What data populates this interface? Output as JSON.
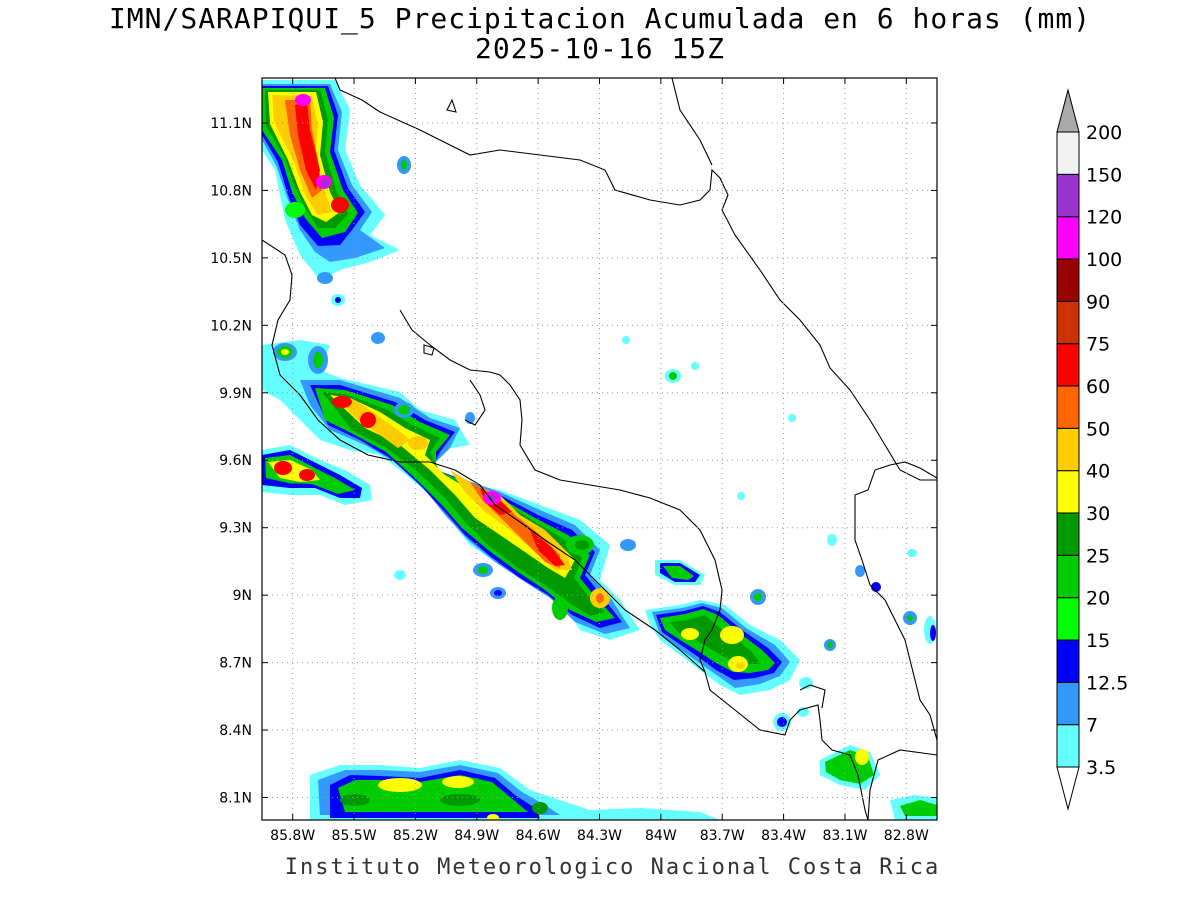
{
  "title": {
    "line1": "IMN/SARAPIQUI_5 Precipitacion Acumulada en 6 horas (mm)",
    "line2": "2025-10-16 15Z"
  },
  "footer": "Instituto Meteorologico Nacional Costa Rica",
  "map": {
    "lon_range": [
      -85.95,
      -82.65
    ],
    "lat_range": [
      8.0,
      11.3
    ],
    "lon_ticks": [
      {
        "value": -85.8,
        "label": "85.8W"
      },
      {
        "value": -85.5,
        "label": "85.5W"
      },
      {
        "value": -85.2,
        "label": "85.2W"
      },
      {
        "value": -84.9,
        "label": "84.9W"
      },
      {
        "value": -84.6,
        "label": "84.6W"
      },
      {
        "value": -84.3,
        "label": "84.3W"
      },
      {
        "value": -84.0,
        "label": "84W"
      },
      {
        "value": -83.7,
        "label": "83.7W"
      },
      {
        "value": -83.4,
        "label": "83.4W"
      },
      {
        "value": -83.1,
        "label": "83.1W"
      },
      {
        "value": -82.8,
        "label": "82.8W"
      }
    ],
    "lat_ticks": [
      {
        "value": 11.1,
        "label": "11.1N"
      },
      {
        "value": 10.8,
        "label": "10.8N"
      },
      {
        "value": 10.5,
        "label": "10.5N"
      },
      {
        "value": 10.2,
        "label": "10.2N"
      },
      {
        "value": 9.9,
        "label": "9.9N"
      },
      {
        "value": 9.6,
        "label": "9.6N"
      },
      {
        "value": 9.3,
        "label": "9.3N"
      },
      {
        "value": 9.0,
        "label": "9N"
      },
      {
        "value": 8.7,
        "label": "8.7N"
      },
      {
        "value": 8.4,
        "label": "8.4N"
      },
      {
        "value": 8.1,
        "label": "8.1N"
      }
    ]
  },
  "legend": {
    "levels": [
      {
        "label": "3.5",
        "color": "#66ffff"
      },
      {
        "label": "7",
        "color": "#3399ff"
      },
      {
        "label": "12.5",
        "color": "#0000ff"
      },
      {
        "label": "15",
        "color": "#00ff00"
      },
      {
        "label": "20",
        "color": "#00cc00"
      },
      {
        "label": "25",
        "color": "#009900"
      },
      {
        "label": "30",
        "color": "#ffff00"
      },
      {
        "label": "40",
        "color": "#ffcc00"
      },
      {
        "label": "50",
        "color": "#ff6600"
      },
      {
        "label": "60",
        "color": "#ff0000"
      },
      {
        "label": "75",
        "color": "#cc3300"
      },
      {
        "label": "90",
        "color": "#990000"
      },
      {
        "label": "100",
        "color": "#ff00ff"
      },
      {
        "label": "120",
        "color": "#9933cc"
      },
      {
        "label": "150",
        "color": "#f2f2f2"
      },
      {
        "label": "200",
        "color": null
      }
    ],
    "below_color": "#ffffff",
    "above_color": "#aaaaaa"
  }
}
